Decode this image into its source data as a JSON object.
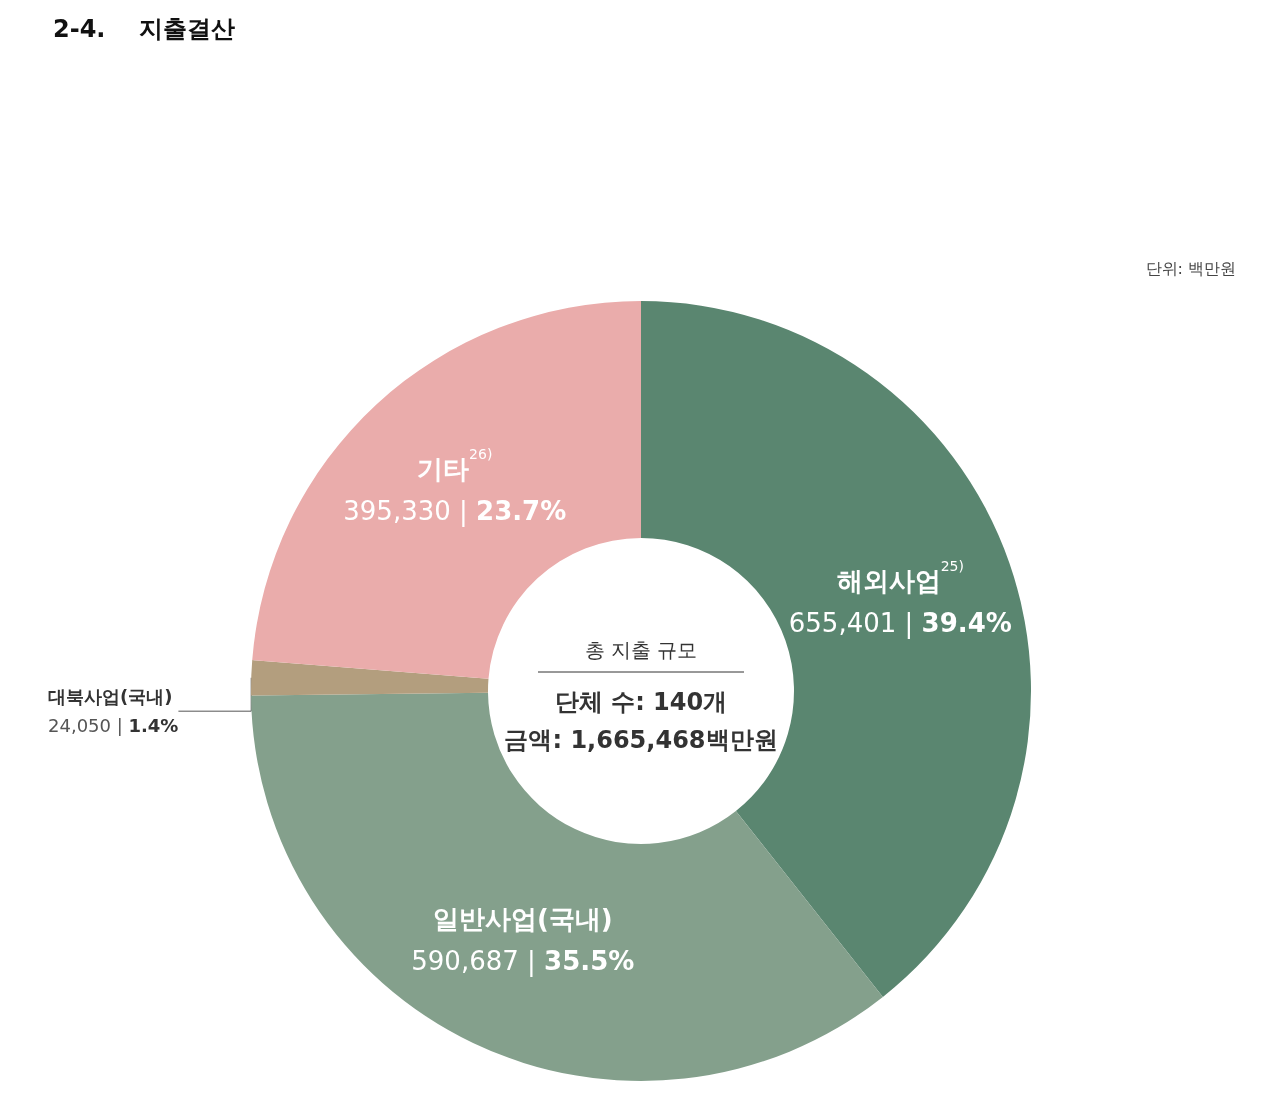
{
  "chart_data": {
    "type": "donut",
    "title": "2-4.    지출결산",
    "categories": [
      "해외사업$^{25)}$",
      "일반사업(국내)",
      "대북사업(국내)",
      "기타$^{26)}$"
    ],
    "values": [
      655401,
      590687,
      24050,
      395330
    ],
    "colors": [
      "#5a8670",
      "#84a08c",
      "#b39e7e",
      "#eaacab"
    ],
    "value_labels": [
      "655,401 | 39.4%",
      "590,687 | 35.5%",
      "24,050 | 1.4%",
      "395,330 | 23.7%"
    ],
    "annotations": [
      "단위: 백만원",
      "총 지출 규모",
      "단체 수: 140개",
      "금액: 1,665,468백만원"
    ],
    "legend": false
  }
}
